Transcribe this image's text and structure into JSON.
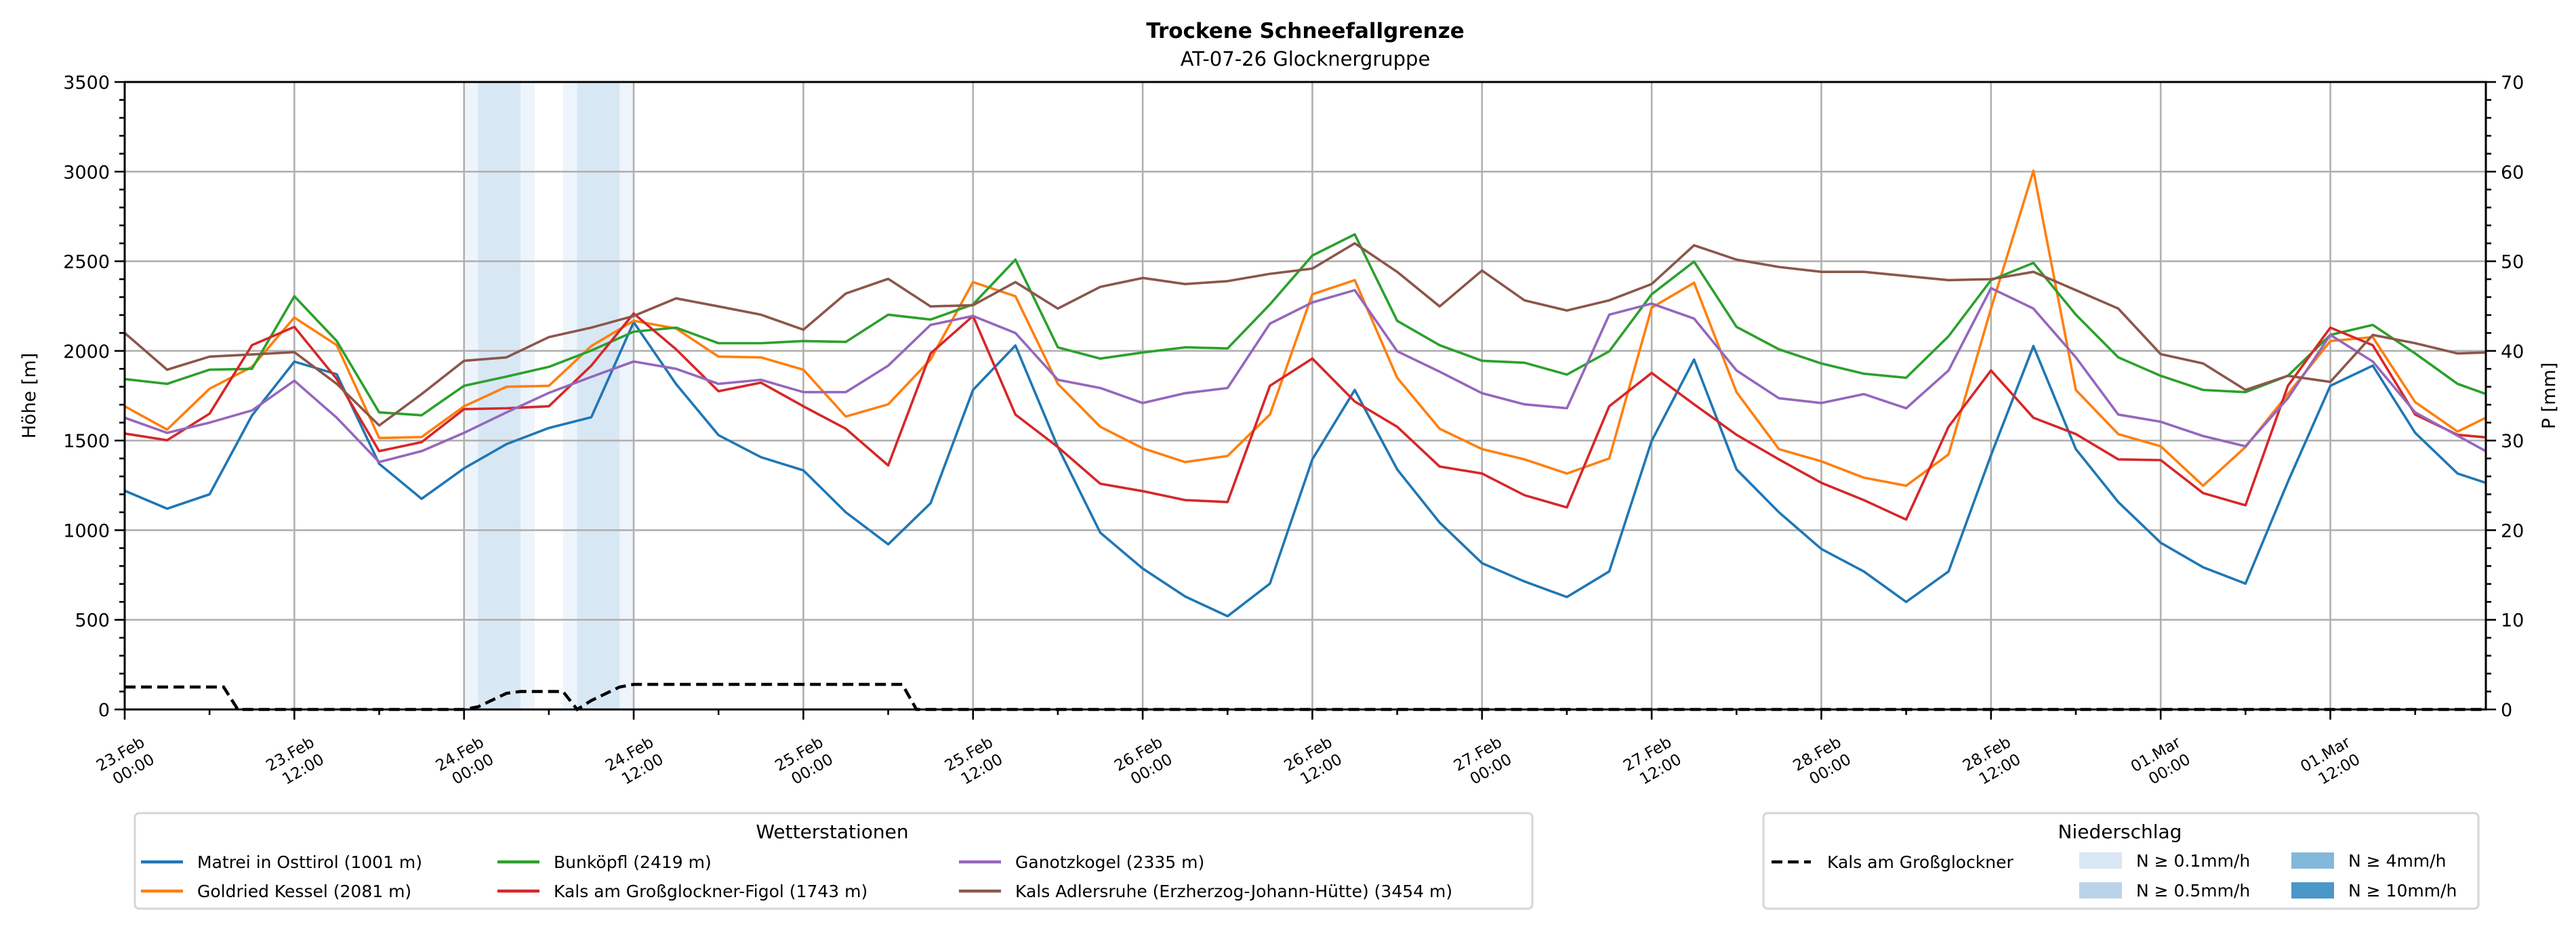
{
  "chart_data": {
    "type": "line",
    "title": "Trockene Schneefallgrenze",
    "subtitle": "AT-07-26 Glocknergruppe",
    "ylabel": "Höhe [m]",
    "y2label": "P [mm]",
    "xlim_hours": [
      0,
      167
    ],
    "ylim": [
      0,
      3500
    ],
    "y2lim": [
      0,
      70
    ],
    "grid": true,
    "y_ticks": [
      0,
      500,
      1000,
      1500,
      2000,
      2500,
      3000,
      3500
    ],
    "y2_ticks": [
      0,
      10,
      20,
      30,
      40,
      50,
      60,
      70
    ],
    "x_ticks": [
      {
        "hour": 0,
        "label": [
          "23.Feb",
          "00:00"
        ]
      },
      {
        "hour": 12,
        "label": [
          "23.Feb",
          "12:00"
        ]
      },
      {
        "hour": 24,
        "label": [
          "24.Feb",
          "00:00"
        ]
      },
      {
        "hour": 36,
        "label": [
          "24.Feb",
          "12:00"
        ]
      },
      {
        "hour": 48,
        "label": [
          "25.Feb",
          "00:00"
        ]
      },
      {
        "hour": 60,
        "label": [
          "25.Feb",
          "12:00"
        ]
      },
      {
        "hour": 72,
        "label": [
          "26.Feb",
          "00:00"
        ]
      },
      {
        "hour": 84,
        "label": [
          "26.Feb",
          "12:00"
        ]
      },
      {
        "hour": 96,
        "label": [
          "27.Feb",
          "00:00"
        ]
      },
      {
        "hour": 108,
        "label": [
          "27.Feb",
          "12:00"
        ]
      },
      {
        "hour": 120,
        "label": [
          "28.Feb",
          "00:00"
        ]
      },
      {
        "hour": 132,
        "label": [
          "28.Feb",
          "12:00"
        ]
      },
      {
        "hour": 144,
        "label": [
          "01.Mar",
          "00:00"
        ]
      },
      {
        "hour": 156,
        "label": [
          "01.Mar",
          "12:00"
        ]
      }
    ],
    "x_hours": [
      0,
      3,
      6,
      9,
      12,
      15,
      18,
      21,
      24,
      27,
      30,
      33,
      36,
      39,
      42,
      45,
      48,
      51,
      54,
      57,
      60,
      63,
      66,
      69,
      72,
      75,
      78,
      81,
      84,
      87,
      90,
      93,
      96,
      99,
      102,
      105,
      108,
      111,
      114,
      117,
      120,
      123,
      126,
      129,
      132,
      135,
      138,
      141,
      144,
      147,
      150,
      153,
      156,
      159,
      162,
      165,
      167
    ],
    "series": [
      {
        "name": "Matrei in Osttirol (1001 m)",
        "color": "#1f77b4",
        "values": [
          1220,
          1120,
          1200,
          1640,
          1940,
          1870,
          1370,
          1175,
          1345,
          1480,
          1570,
          1630,
          2160,
          1815,
          1530,
          1407,
          1334,
          1100,
          921,
          1150,
          1782,
          2030,
          1464,
          986,
          786,
          630,
          520,
          702,
          1395,
          1782,
          1339,
          1043,
          816,
          714,
          627,
          770,
          1498,
          1952,
          1339,
          1100,
          895,
          770,
          600,
          770,
          1418,
          2027,
          1452,
          1157,
          930,
          793,
          702,
          1270,
          1805,
          1918,
          1543,
          1316,
          1264
        ]
      },
      {
        "name": "Goldried Kessel (2081 m)",
        "color": "#ff7f0e",
        "values": [
          1691,
          1561,
          1789,
          1911,
          2186,
          2032,
          1514,
          1520,
          1691,
          1800,
          1805,
          2027,
          2168,
          2125,
          1968,
          1964,
          1895,
          1634,
          1702,
          1952,
          2384,
          2305,
          1816,
          1577,
          1457,
          1380,
          1414,
          1645,
          2316,
          2395,
          1850,
          1566,
          1452,
          1395,
          1316,
          1400,
          2241,
          2380,
          1770,
          1452,
          1384,
          1293,
          1248,
          1423,
          2236,
          3005,
          1782,
          1536,
          1468,
          1248,
          1464,
          1759,
          2055,
          2077,
          1714,
          1550,
          1627
        ]
      },
      {
        "name": "Bunköpfl (2419 m)",
        "color": "#2ca02c",
        "values": [
          1843,
          1816,
          1895,
          1900,
          2305,
          2055,
          1657,
          1641,
          1805,
          1857,
          1911,
          2002,
          2107,
          2130,
          2043,
          2043,
          2055,
          2050,
          2202,
          2175,
          2259,
          2509,
          2020,
          1957,
          1991,
          2020,
          2014,
          2259,
          2532,
          2650,
          2168,
          2032,
          1945,
          1934,
          1868,
          1998,
          2316,
          2498,
          2134,
          2009,
          1930,
          1873,
          1850,
          2082,
          2395,
          2491,
          2202,
          1964,
          1861,
          1782,
          1770,
          1861,
          2089,
          2145,
          1986,
          1816,
          1760
        ]
      },
      {
        "name": "Kals am Großglockner-Figol (1743 m)",
        "color": "#d62728",
        "values": [
          1539,
          1502,
          1650,
          2032,
          2134,
          1843,
          1441,
          1491,
          1675,
          1680,
          1691,
          1918,
          2209,
          2009,
          1775,
          1823,
          1691,
          1566,
          1361,
          1986,
          2195,
          1645,
          1464,
          1259,
          1218,
          1168,
          1157,
          1805,
          1957,
          1718,
          1577,
          1355,
          1316,
          1195,
          1127,
          1691,
          1877,
          1702,
          1532,
          1395,
          1264,
          1168,
          1059,
          1577,
          1891,
          1627,
          1536,
          1395,
          1391,
          1207,
          1139,
          1805,
          2130,
          2032,
          1645,
          1532,
          1518
        ]
      },
      {
        "name": "Ganotzkogel (2335 m)",
        "color": "#9467bd",
        "values": [
          1627,
          1543,
          1600,
          1668,
          1834,
          1627,
          1380,
          1441,
          1543,
          1657,
          1766,
          1855,
          1941,
          1900,
          1816,
          1839,
          1770,
          1770,
          1918,
          2145,
          2195,
          2100,
          1839,
          1793,
          1709,
          1764,
          1793,
          2152,
          2270,
          2339,
          1998,
          1884,
          1764,
          1702,
          1680,
          2202,
          2264,
          2180,
          1891,
          1736,
          1709,
          1759,
          1680,
          1891,
          2350,
          2236,
          1964,
          1645,
          1605,
          1525,
          1468,
          1736,
          2089,
          1941,
          1657,
          1527,
          1441
        ]
      },
      {
        "name": "Kals Adlersruhe (Erzherzog-Johann-Hütte) (3454 m)",
        "color": "#8c564b",
        "values": [
          2100,
          1895,
          1968,
          1980,
          1993,
          1816,
          1584,
          1759,
          1945,
          1964,
          2077,
          2130,
          2195,
          2293,
          2248,
          2202,
          2118,
          2320,
          2402,
          2248,
          2255,
          2384,
          2236,
          2357,
          2407,
          2373,
          2389,
          2430,
          2459,
          2600,
          2441,
          2248,
          2448,
          2282,
          2225,
          2282,
          2373,
          2589,
          2509,
          2468,
          2441,
          2441,
          2418,
          2395,
          2400,
          2441,
          2339,
          2236,
          1982,
          1930,
          1782,
          1861,
          1827,
          2089,
          2043,
          1986,
          1991
        ]
      }
    ],
    "precip_series": {
      "name": "Kals am Großglockner",
      "color": "#000000",
      "hours": [
        0,
        7,
        8,
        24,
        25,
        27,
        28,
        31,
        32,
        33,
        35,
        36,
        55,
        56,
        167
      ],
      "values_mm": [
        2.5,
        2.5,
        0,
        0,
        0.3,
        1.8,
        2.0,
        2.0,
        0,
        1.0,
        2.5,
        2.8,
        2.8,
        0,
        0
      ]
    },
    "precip_bands": [
      {
        "from_hour": 24,
        "to_hour": 29,
        "color": "#eef4fb"
      },
      {
        "from_hour": 25,
        "to_hour": 28,
        "color": "#d8e7f4"
      },
      {
        "from_hour": 31,
        "to_hour": 36,
        "color": "#eef4fb"
      },
      {
        "from_hour": 32,
        "to_hour": 35,
        "color": "#d8e7f4"
      }
    ],
    "legend_stations": {
      "title": "Wetterstationen",
      "placement": "bottom-left"
    },
    "legend_precip": {
      "title": "Niederschlag",
      "placement": "bottom-right",
      "line_label": "Kals am Großglockner",
      "classes": [
        {
          "label": "N ≥ 0.1mm/h",
          "color": "#d9e7f4"
        },
        {
          "label": "N ≥ 0.5mm/h",
          "color": "#b9d4ea"
        },
        {
          "label": "N ≥ 4mm/h",
          "color": "#82b8da"
        },
        {
          "label": "N ≥ 10mm/h",
          "color": "#4a97c9"
        }
      ]
    }
  }
}
